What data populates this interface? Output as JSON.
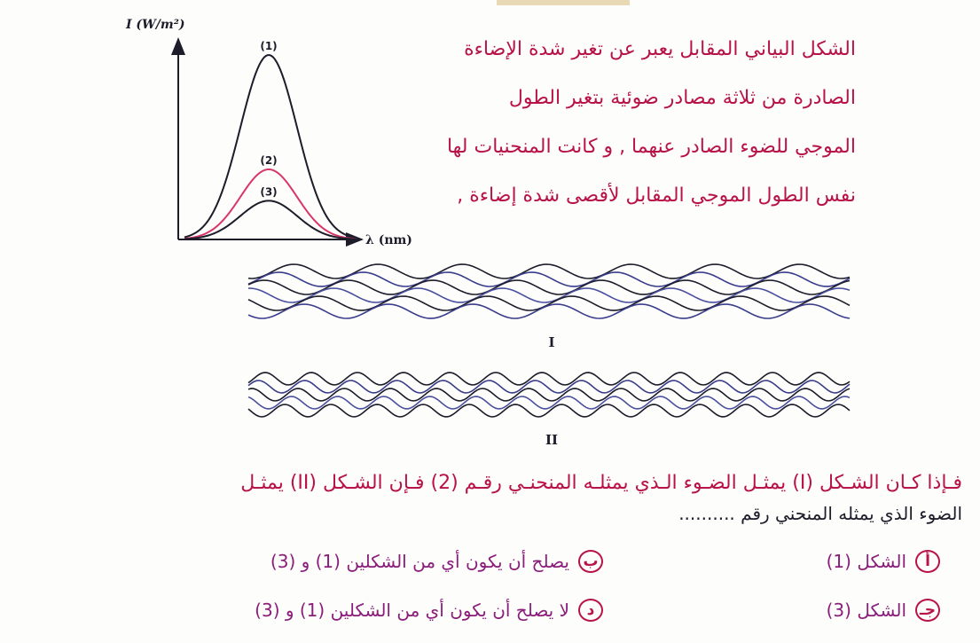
{
  "graph": {
    "y_axis_label": "I (W/m²)",
    "x_axis_label": "λ (nm)",
    "curves": [
      {
        "label": "(1)",
        "relative_peak": 1.0,
        "color": "#1c1c2a"
      },
      {
        "label": "(2)",
        "relative_peak": 0.38,
        "color": "#d8356a"
      },
      {
        "label": "(3)",
        "relative_peak": 0.21,
        "color": "#1c1c2a"
      }
    ]
  },
  "intro_lines": [
    "الشكل البياني المقابل يعبر عن تغير شدة الإضاءة",
    "الصادرة من ثلاثة مصادر ضوئية بتغير الطول",
    "الموجي للضوء الصادر عنهما , و كانت المنحنيات لها",
    "نفس الطول الموجي المقابل لأقصى شدة إضاءة ,"
  ],
  "figures": [
    {
      "label": "I",
      "wave_count": 6,
      "dense": false
    },
    {
      "label": "II",
      "wave_count": 5,
      "dense": true
    }
  ],
  "question": {
    "line1": "فـإذا كـان الشـكل (I) يمثـل الضـوء الـذي يمثلـه المنحنـي رقـم (2) فـإن الشـكل (II) يمثـل",
    "line2": "الضوء الذي يمثله المنحني رقم .........."
  },
  "choices": {
    "a": {
      "letter": "أ",
      "text": "الشكل (1)"
    },
    "b": {
      "letter": "ب",
      "text": "يصلح أن يكون أي من الشكلين (1) و (3)"
    },
    "c": {
      "letter": "جـ",
      "text": "الشكل (3)"
    },
    "d": {
      "letter": "د",
      "text": "لا يصلح أن يكون أي من الشكلين (1) و (3)"
    }
  }
}
